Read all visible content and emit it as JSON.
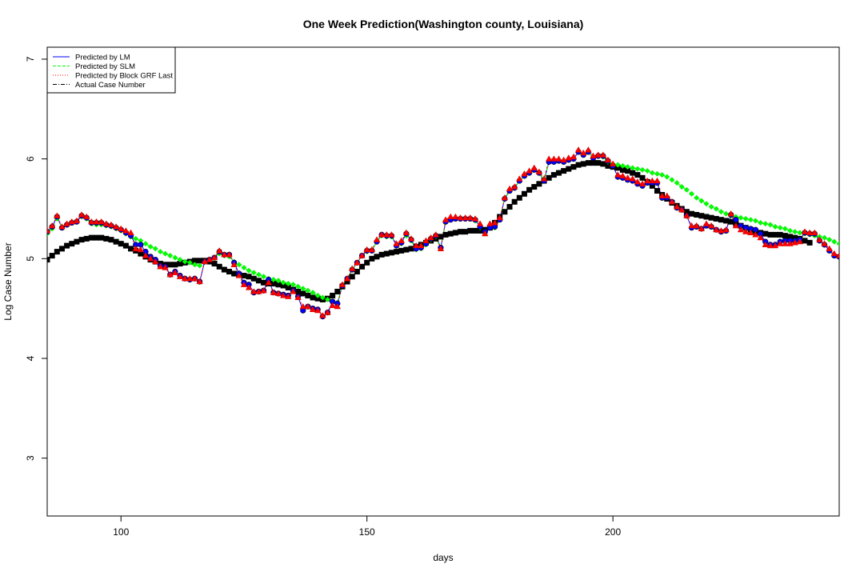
{
  "chart_data": {
    "type": "line",
    "title": "One Week Prediction(Washington county, Louisiana)",
    "xlabel": "days",
    "ylabel": "Log Case Number",
    "xlim": [
      85,
      246
    ],
    "ylim": [
      2.42,
      7.12
    ],
    "x_ticks": [
      100,
      150,
      200
    ],
    "y_ticks": [
      3,
      4,
      5,
      6,
      7
    ],
    "grid": false,
    "legend": {
      "placement": "top-left",
      "entries": [
        {
          "label": "Predicted by LM",
          "color": "#0000ff",
          "line": "solid",
          "marker": "circle"
        },
        {
          "label": "Predicted by SLM",
          "color": "#00ff00",
          "line": "dashed",
          "marker": "diamond"
        },
        {
          "label": "Predicted by Block GRF Last",
          "color": "#ff0000",
          "line": "dotted",
          "marker": "triangle"
        },
        {
          "label": "Actual Case Number",
          "color": "#000000",
          "line": "dashdot",
          "marker": "square"
        }
      ]
    },
    "x_start": 85,
    "series": [
      {
        "name": "Actual Case Number",
        "values": [
          4.99,
          5.03,
          5.07,
          5.1,
          5.13,
          5.15,
          5.17,
          5.19,
          5.2,
          5.21,
          5.21,
          5.21,
          5.2,
          5.19,
          5.17,
          5.15,
          5.13,
          5.1,
          5.08,
          5.05,
          5.02,
          4.99,
          4.97,
          4.95,
          4.94,
          4.94,
          4.94,
          4.95,
          4.96,
          4.97,
          4.98,
          4.98,
          4.98,
          4.97,
          4.95,
          4.92,
          4.89,
          4.87,
          4.85,
          4.84,
          4.83,
          4.82,
          4.8,
          4.78,
          4.76,
          4.75,
          4.75,
          4.74,
          4.73,
          4.71,
          4.69,
          4.67,
          4.65,
          4.63,
          4.61,
          4.6,
          4.59,
          4.6,
          4.63,
          4.67,
          4.72,
          4.77,
          4.82,
          4.87,
          4.92,
          4.96,
          5.0,
          5.02,
          5.04,
          5.05,
          5.06,
          5.07,
          5.08,
          5.09,
          5.1,
          5.12,
          5.14,
          5.16,
          5.18,
          5.2,
          5.22,
          5.24,
          5.25,
          5.26,
          5.27,
          5.27,
          5.28,
          5.28,
          5.28,
          5.29,
          5.31,
          5.36,
          5.42,
          5.47,
          5.52,
          5.57,
          5.61,
          5.65,
          5.69,
          5.72,
          5.75,
          5.78,
          5.81,
          5.84,
          5.86,
          5.88,
          5.9,
          5.92,
          5.94,
          5.95,
          5.96,
          5.96,
          5.96,
          5.95,
          5.93,
          5.92,
          5.91,
          5.89,
          5.88,
          5.86,
          5.84,
          5.81,
          5.77,
          5.73,
          5.68,
          5.64,
          5.6,
          5.56,
          5.53,
          5.5,
          5.47,
          5.45,
          5.44,
          5.43,
          5.42,
          5.41,
          5.4,
          5.39,
          5.38,
          5.37,
          5.35,
          5.33,
          5.31,
          5.29,
          5.27,
          5.26,
          5.25,
          5.24,
          5.24,
          5.24,
          5.23,
          5.22,
          5.21,
          5.2,
          5.18,
          5.16
        ]
      },
      {
        "name": "Predicted by LM",
        "values": [
          5.27,
          5.32,
          5.42,
          5.31,
          5.34,
          5.36,
          5.37,
          5.43,
          5.41,
          5.36,
          5.36,
          5.36,
          5.34,
          5.33,
          5.31,
          5.29,
          5.26,
          5.23,
          5.14,
          5.14,
          5.07,
          5.02,
          4.99,
          4.93,
          4.92,
          4.84,
          4.87,
          4.83,
          4.8,
          4.79,
          4.8,
          4.77,
          4.97,
          4.99,
          5.01,
          5.07,
          5.04,
          5.04,
          4.96,
          4.85,
          4.76,
          4.74,
          4.66,
          4.67,
          4.68,
          4.79,
          4.66,
          4.65,
          4.64,
          4.63,
          4.68,
          4.62,
          4.48,
          4.52,
          4.5,
          4.49,
          4.42,
          4.46,
          4.57,
          4.55,
          4.73,
          4.8,
          4.89,
          4.96,
          5.03,
          5.08,
          5.08,
          5.17,
          5.24,
          5.23,
          5.23,
          5.13,
          5.16,
          5.25,
          5.19,
          5.1,
          5.11,
          5.15,
          5.2,
          5.23,
          5.11,
          5.37,
          5.39,
          5.4,
          5.4,
          5.4,
          5.4,
          5.39,
          5.32,
          5.27,
          5.31,
          5.32,
          5.39,
          5.6,
          5.68,
          5.71,
          5.78,
          5.83,
          5.86,
          5.89,
          5.86,
          5.78,
          5.97,
          5.97,
          5.98,
          5.97,
          5.99,
          6.0,
          6.07,
          6.04,
          6.07,
          6.01,
          6.03,
          6.03,
          5.98,
          5.93,
          5.82,
          5.81,
          5.79,
          5.78,
          5.75,
          5.73,
          5.76,
          5.76,
          5.76,
          5.61,
          5.61,
          5.57,
          5.51,
          5.49,
          5.43,
          5.31,
          5.32,
          5.3,
          5.33,
          5.32,
          5.29,
          5.27,
          5.28,
          5.44,
          5.39,
          5.33,
          5.31,
          5.3,
          5.29,
          5.25,
          5.17,
          5.14,
          5.14,
          5.17,
          5.18,
          5.18,
          5.18,
          5.19,
          5.26,
          5.25,
          5.25,
          5.18,
          5.14,
          5.08,
          5.03,
          5.02,
          4.93
        ]
      },
      {
        "name": "Predicted by SLM",
        "values": [
          5.25,
          5.3,
          5.4,
          5.32,
          5.34,
          5.36,
          5.37,
          5.42,
          5.4,
          5.35,
          5.34,
          5.34,
          5.33,
          5.32,
          5.3,
          5.28,
          5.25,
          5.22,
          5.2,
          5.18,
          5.15,
          5.12,
          5.1,
          5.07,
          5.05,
          5.03,
          5.01,
          4.99,
          4.97,
          4.96,
          4.94,
          4.93,
          4.97,
          4.99,
          5.01,
          5.05,
          5.03,
          5.02,
          4.97,
          4.94,
          4.91,
          4.88,
          4.86,
          4.84,
          4.82,
          4.8,
          4.79,
          4.78,
          4.76,
          4.75,
          4.74,
          4.72,
          4.7,
          4.68,
          4.66,
          4.63,
          4.61,
          4.59,
          4.57,
          4.56,
          4.73,
          4.8,
          4.89,
          4.96,
          5.03,
          5.07,
          5.08,
          5.17,
          5.23,
          5.22,
          5.22,
          5.13,
          5.15,
          5.23,
          5.18,
          5.09,
          5.1,
          5.14,
          5.19,
          5.22,
          5.1,
          5.37,
          5.39,
          5.4,
          5.4,
          5.4,
          5.4,
          5.38,
          5.31,
          5.25,
          5.31,
          5.31,
          5.39,
          5.61,
          5.68,
          5.71,
          5.78,
          5.83,
          5.86,
          5.89,
          5.86,
          5.79,
          5.97,
          5.97,
          5.98,
          5.97,
          5.99,
          6.0,
          6.07,
          6.04,
          6.07,
          6.01,
          6.03,
          6.02,
          5.97,
          5.95,
          5.94,
          5.93,
          5.92,
          5.91,
          5.9,
          5.89,
          5.88,
          5.86,
          5.85,
          5.84,
          5.82,
          5.79,
          5.76,
          5.72,
          5.69,
          5.65,
          5.61,
          5.58,
          5.55,
          5.52,
          5.5,
          5.47,
          5.45,
          5.43,
          5.42,
          5.41,
          5.4,
          5.39,
          5.38,
          5.36,
          5.35,
          5.34,
          5.32,
          5.31,
          5.3,
          5.28,
          5.27,
          5.26,
          5.25,
          5.24,
          5.23,
          5.22,
          5.21,
          5.19,
          5.17,
          5.15,
          5.13
        ]
      },
      {
        "name": "Predicted by Block GRF Last",
        "values": [
          5.28,
          5.33,
          5.43,
          5.32,
          5.35,
          5.37,
          5.38,
          5.44,
          5.42,
          5.37,
          5.37,
          5.37,
          5.35,
          5.34,
          5.32,
          5.3,
          5.28,
          5.26,
          5.1,
          5.09,
          5.03,
          5.0,
          4.97,
          4.92,
          4.91,
          4.84,
          4.86,
          4.82,
          4.8,
          4.8,
          4.8,
          4.77,
          4.97,
          4.99,
          5.01,
          5.08,
          5.04,
          5.04,
          4.94,
          4.83,
          4.74,
          4.71,
          4.67,
          4.67,
          4.68,
          4.76,
          4.66,
          4.65,
          4.63,
          4.62,
          4.67,
          4.61,
          4.52,
          4.52,
          4.49,
          4.48,
          4.43,
          4.46,
          4.53,
          4.52,
          4.74,
          4.8,
          4.9,
          4.96,
          5.03,
          5.09,
          5.09,
          5.19,
          5.24,
          5.24,
          5.24,
          5.15,
          5.18,
          5.26,
          5.2,
          5.13,
          5.13,
          5.18,
          5.21,
          5.24,
          5.1,
          5.39,
          5.42,
          5.42,
          5.41,
          5.41,
          5.41,
          5.4,
          5.35,
          5.25,
          5.35,
          5.36,
          5.41,
          5.61,
          5.7,
          5.72,
          5.8,
          5.85,
          5.88,
          5.91,
          5.87,
          5.8,
          6.0,
          6.0,
          6.0,
          5.99,
          6.01,
          6.02,
          6.09,
          6.06,
          6.09,
          6.03,
          6.04,
          6.04,
          5.99,
          5.95,
          5.84,
          5.83,
          5.81,
          5.8,
          5.77,
          5.75,
          5.78,
          5.78,
          5.78,
          5.63,
          5.63,
          5.57,
          5.52,
          5.49,
          5.43,
          5.33,
          5.33,
          5.3,
          5.35,
          5.33,
          5.29,
          5.28,
          5.29,
          5.45,
          5.33,
          5.29,
          5.27,
          5.26,
          5.24,
          5.21,
          5.14,
          5.13,
          5.13,
          5.15,
          5.15,
          5.15,
          5.16,
          5.17,
          5.27,
          5.26,
          5.26,
          5.19,
          5.15,
          5.1,
          5.05,
          5.03,
          4.96
        ]
      }
    ]
  }
}
